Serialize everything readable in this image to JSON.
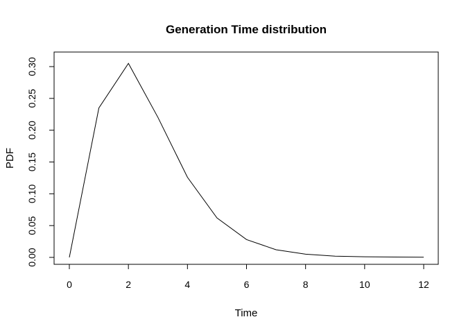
{
  "chart_data": {
    "type": "line",
    "title": "Generation Time distribution",
    "xlabel": "Time",
    "ylabel": "PDF",
    "xlim": [
      0,
      12
    ],
    "ylim": [
      0,
      0.3
    ],
    "x_ticks": [
      0,
      2,
      4,
      6,
      8,
      10,
      12
    ],
    "y_ticks": [
      0.0,
      0.05,
      0.1,
      0.15,
      0.2,
      0.25,
      0.3
    ],
    "x_tick_labels": [
      "0",
      "2",
      "4",
      "6",
      "8",
      "10",
      "12"
    ],
    "y_tick_labels": [
      "0.00",
      "0.05",
      "0.10",
      "0.15",
      "0.20",
      "0.25",
      "0.30"
    ],
    "grid": false,
    "series": [
      {
        "color": "#000000",
        "x": [
          0,
          1,
          2,
          3,
          4,
          5,
          6,
          7,
          8,
          9,
          10,
          11,
          12
        ],
        "y": [
          0.0,
          0.235,
          0.305,
          0.22,
          0.126,
          0.062,
          0.028,
          0.012,
          0.005,
          0.002,
          0.001,
          0.0005,
          0.0002
        ]
      }
    ]
  }
}
